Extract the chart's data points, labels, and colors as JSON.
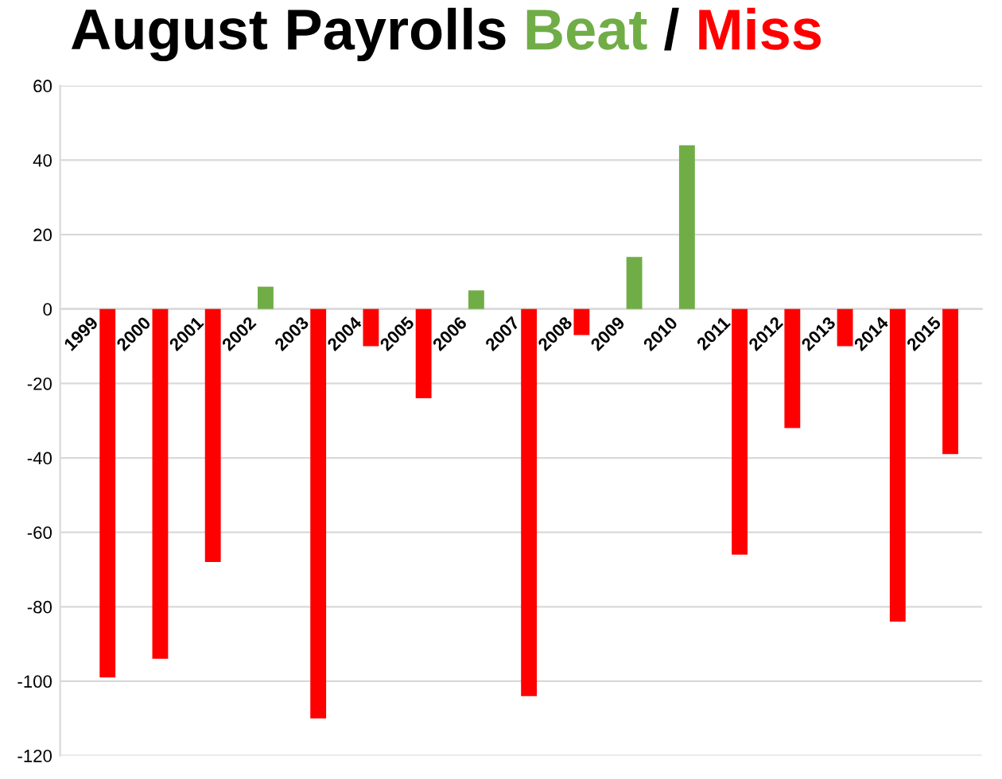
{
  "chart_data": {
    "type": "bar",
    "title": "August Payrolls Beat / Miss",
    "categories": [
      "1999",
      "2000",
      "2001",
      "2002",
      "2003",
      "2004",
      "2005",
      "2006",
      "2007",
      "2008",
      "2009",
      "2010",
      "2011",
      "2012",
      "2013",
      "2014",
      "2015"
    ],
    "values": [
      -99,
      -94,
      -68,
      6,
      -110,
      -10,
      -24,
      5,
      -104,
      -7,
      14,
      44,
      -66,
      -32,
      -10,
      -84,
      -39
    ],
    "colors": [
      "#ff0000",
      "#ff0000",
      "#ff0000",
      "#70ad47",
      "#ff0000",
      "#ff0000",
      "#ff0000",
      "#70ad47",
      "#ff0000",
      "#ff0000",
      "#70ad47",
      "#70ad47",
      "#ff0000",
      "#ff0000",
      "#ff0000",
      "#ff0000",
      "#ff0000"
    ],
    "ylim": [
      -120,
      60
    ],
    "yticks": [
      -120,
      -100,
      -80,
      -60,
      -40,
      -20,
      0,
      20,
      40,
      60
    ],
    "grid": "y"
  }
}
